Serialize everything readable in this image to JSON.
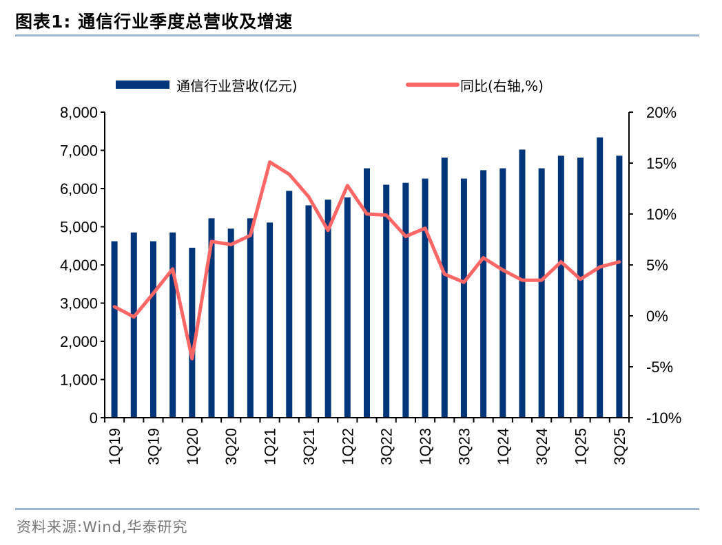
{
  "header": {
    "title": "图表1:   通信行业季度总营收及增速"
  },
  "footer": {
    "source": "资料来源:Wind,华泰研究"
  },
  "colors": {
    "bar": "#003679",
    "line": "#ff6666",
    "rule": "#9fb6d0"
  },
  "chart_data": {
    "type": "bar+line",
    "title": "通信行业季度总营收及增速",
    "legend_position": "top",
    "categories": [
      "1Q19",
      "2Q19",
      "3Q19",
      "4Q19",
      "1Q20",
      "2Q20",
      "3Q20",
      "4Q20",
      "1Q21",
      "2Q21",
      "3Q21",
      "4Q21",
      "1Q22",
      "2Q22",
      "3Q22",
      "4Q22",
      "1Q23",
      "2Q23",
      "3Q23",
      "4Q23",
      "1Q24",
      "2Q24",
      "3Q24",
      "4Q24",
      "1Q25",
      "2Q25",
      "3Q25"
    ],
    "x_tick_labels": [
      "1Q19",
      "3Q19",
      "1Q20",
      "3Q20",
      "1Q21",
      "3Q21",
      "1Q22",
      "3Q22",
      "1Q23",
      "3Q23",
      "1Q24",
      "3Q24",
      "1Q25",
      "3Q25"
    ],
    "series": [
      {
        "name": "通信行业营收(亿元)",
        "type": "bar",
        "axis": "left",
        "values": [
          4620,
          4850,
          4620,
          4850,
          4450,
          5220,
          4950,
          5220,
          5110,
          5940,
          5560,
          5710,
          5770,
          6530,
          6100,
          6150,
          6260,
          6810,
          6260,
          6480,
          6530,
          7020,
          6530,
          6860,
          6810,
          7340,
          6860
        ]
      },
      {
        "name": "同比(右轴,%)",
        "type": "line",
        "axis": "right",
        "values": [
          0.9,
          -0.1,
          2.2,
          4.6,
          -4.2,
          7.3,
          7.0,
          7.9,
          15.1,
          13.9,
          11.7,
          8.4,
          12.8,
          10.0,
          9.9,
          7.8,
          8.6,
          4.1,
          3.3,
          5.7,
          4.5,
          3.5,
          3.5,
          5.3,
          3.6,
          4.8,
          5.3
        ]
      }
    ],
    "left_axis": {
      "ylim": [
        0,
        8000
      ],
      "ticks": [
        0,
        1000,
        2000,
        3000,
        4000,
        5000,
        6000,
        7000,
        8000
      ],
      "tick_labels": [
        "0",
        "1,000",
        "2,000",
        "3,000",
        "4,000",
        "5,000",
        "6,000",
        "7,000",
        "8,000"
      ]
    },
    "right_axis": {
      "ylim": [
        -10,
        20
      ],
      "ticks": [
        -10,
        -5,
        0,
        5,
        10,
        15,
        20
      ],
      "tick_labels": [
        "-10%",
        "-5%",
        "0%",
        "5%",
        "10%",
        "15%",
        "20%"
      ]
    },
    "grid": false
  }
}
